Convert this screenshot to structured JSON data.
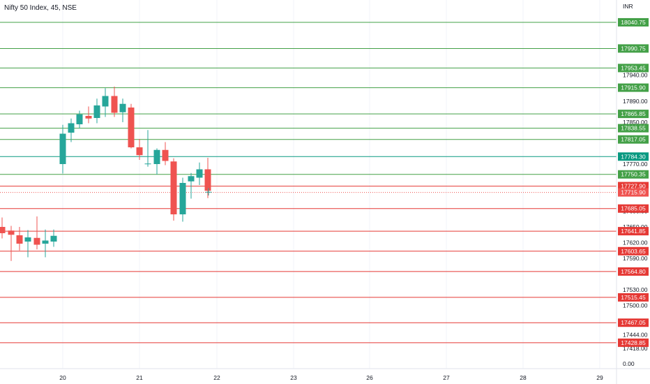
{
  "header": {
    "title": "Nifty 50 Index, 45, NSE",
    "currency": "INR"
  },
  "colors": {
    "up": "#26a69a",
    "down": "#ef5350",
    "support_green": "#43a047",
    "resistance_red": "#e53935",
    "current_price": "#ef5350",
    "bull_label": "#089981",
    "grid": "#f0f3fa"
  },
  "chart_data": {
    "type": "candlestick",
    "title": "Nifty 50 Index, 45, NSE",
    "ylim": [
      17390,
      18070
    ],
    "x_axis": {
      "tick_labels": [
        "20",
        "21",
        "22",
        "23",
        "26",
        "27",
        "28",
        "29"
      ]
    },
    "y_axis": {
      "tick_labels": [
        "17940.00",
        "17890.00",
        "17850.00",
        "17820.00",
        "17770.00",
        "17680.00",
        "17650.00",
        "17620.00",
        "17590.00",
        "17530.00",
        "17500.00",
        "17444.00",
        "17418.00",
        "0.00"
      ],
      "tick_values": [
        17940,
        17890,
        17850,
        17820,
        17770,
        17680,
        17650,
        17620,
        17590,
        17530,
        17500,
        17444,
        17418,
        null
      ]
    },
    "levels": [
      {
        "label": "18040.75",
        "value": 18040.75,
        "kind": "support"
      },
      {
        "label": "17990.75",
        "value": 17990.75,
        "kind": "support"
      },
      {
        "label": "17953.45",
        "value": 17953.45,
        "kind": "support"
      },
      {
        "label": "17915.90",
        "value": 17915.9,
        "kind": "support"
      },
      {
        "label": "17865.85",
        "value": 17865.85,
        "kind": "support"
      },
      {
        "label": "17838.55",
        "value": 17838.55,
        "kind": "support"
      },
      {
        "label": "17817.05",
        "value": 17817.05,
        "kind": "support"
      },
      {
        "label": "17784.30",
        "value": 17784.3,
        "kind": "bull"
      },
      {
        "label": "17750.35",
        "value": 17750.35,
        "kind": "support"
      },
      {
        "label": "17727.90",
        "value": 17727.9,
        "kind": "resistance"
      },
      {
        "label": "17715.90",
        "value": 17715.9,
        "kind": "current"
      },
      {
        "label": "17685.05",
        "value": 17685.05,
        "kind": "resistance"
      },
      {
        "label": "17641.85",
        "value": 17641.85,
        "kind": "resistance"
      },
      {
        "label": "17603.65",
        "value": 17603.65,
        "kind": "resistance"
      },
      {
        "label": "17564.80",
        "value": 17564.8,
        "kind": "resistance"
      },
      {
        "label": "17515.45",
        "value": 17515.45,
        "kind": "resistance"
      },
      {
        "label": "17467.05",
        "value": 17467.05,
        "kind": "resistance"
      },
      {
        "label": "17428.85",
        "value": 17428.85,
        "kind": "resistance"
      }
    ],
    "candles": [
      {
        "o": 17650,
        "h": 17668,
        "l": 17628,
        "c": 17638
      },
      {
        "o": 17643,
        "h": 17652,
        "l": 17585,
        "c": 17635
      },
      {
        "o": 17634,
        "h": 17650,
        "l": 17605,
        "c": 17618
      },
      {
        "o": 17622,
        "h": 17644,
        "l": 17592,
        "c": 17630
      },
      {
        "o": 17629,
        "h": 17670,
        "l": 17607,
        "c": 17616
      },
      {
        "o": 17618,
        "h": 17645,
        "l": 17592,
        "c": 17624
      },
      {
        "o": 17622,
        "h": 17645,
        "l": 17612,
        "c": 17633
      },
      {
        "o": 17770,
        "h": 17845,
        "l": 17752,
        "c": 17828
      },
      {
        "o": 17830,
        "h": 17857,
        "l": 17812,
        "c": 17848
      },
      {
        "o": 17846,
        "h": 17872,
        "l": 17838,
        "c": 17865
      },
      {
        "o": 17862,
        "h": 17880,
        "l": 17848,
        "c": 17857
      },
      {
        "o": 17858,
        "h": 17895,
        "l": 17848,
        "c": 17882
      },
      {
        "o": 17880,
        "h": 17915,
        "l": 17860,
        "c": 17900
      },
      {
        "o": 17900,
        "h": 17918,
        "l": 17860,
        "c": 17868
      },
      {
        "o": 17869,
        "h": 17895,
        "l": 17850,
        "c": 17885
      },
      {
        "o": 17878,
        "h": 17885,
        "l": 17800,
        "c": 17802
      },
      {
        "o": 17802,
        "h": 17818,
        "l": 17778,
        "c": 17787
      },
      {
        "o": 17770,
        "h": 17835,
        "l": 17765,
        "c": 17771
      },
      {
        "o": 17770,
        "h": 17800,
        "l": 17750,
        "c": 17797
      },
      {
        "o": 17797,
        "h": 17812,
        "l": 17768,
        "c": 17776
      },
      {
        "o": 17775,
        "h": 17781,
        "l": 17662,
        "c": 17674
      },
      {
        "o": 17674,
        "h": 17744,
        "l": 17660,
        "c": 17734
      },
      {
        "o": 17737,
        "h": 17753,
        "l": 17704,
        "c": 17747
      },
      {
        "o": 17744,
        "h": 17773,
        "l": 17730,
        "c": 17760
      },
      {
        "o": 17760,
        "h": 17782,
        "l": 17705,
        "c": 17719
      },
      {
        "o": 17717,
        "h": 17724,
        "l": 17710,
        "c": 17717
      }
    ]
  }
}
